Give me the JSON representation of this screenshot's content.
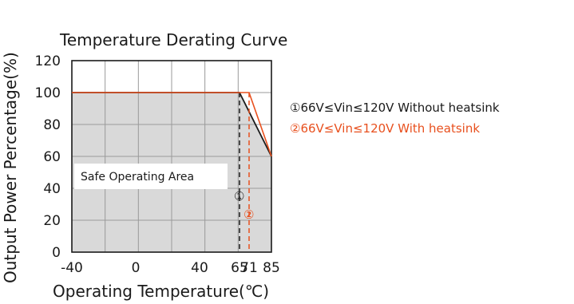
{
  "chart_data": {
    "type": "line",
    "title": "Temperature Derating Curve",
    "xlabel": "Operating Temperature(℃)",
    "ylabel": "Output Power Percentage(%)",
    "x_ticks": [
      "-40",
      "0",
      "40",
      "65",
      "71",
      "85"
    ],
    "y_ticks": [
      "0",
      "20",
      "40",
      "60",
      "80",
      "100",
      "120"
    ],
    "xlim": [
      -40,
      85
    ],
    "ylim": [
      0,
      120
    ],
    "grid": true,
    "legend_position": "right",
    "area_label": "Safe Operating Area",
    "series": [
      {
        "name": "①66V≤Vin≤120V Without heatsink",
        "marker": "①",
        "color": "#1a1a1a",
        "x": [
          -40,
          65,
          85
        ],
        "y": [
          100,
          100,
          60
        ],
        "dashed_ref_x": 65
      },
      {
        "name": "②66V≤Vin≤120V With heatsink",
        "marker": "②",
        "color": "#e8501e",
        "x": [
          -40,
          71,
          85
        ],
        "y": [
          100,
          100,
          60
        ],
        "dashed_ref_x": 71
      }
    ]
  }
}
